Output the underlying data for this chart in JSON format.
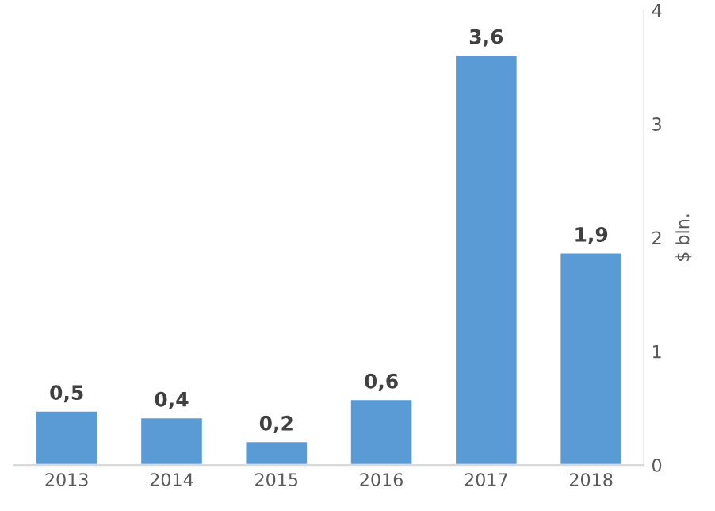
{
  "chart_data": {
    "type": "bar",
    "ylabel": "$ bln.",
    "categories": [
      "2013",
      "2014",
      "2015",
      "2016",
      "2017",
      "2018"
    ],
    "values": [
      0.48,
      0.42,
      0.21,
      0.58,
      3.61,
      1.87
    ],
    "value_labels": [
      "0,5",
      "0,4",
      "0,2",
      "0,6",
      "3,6",
      "1,9"
    ],
    "color": "#5b9bd5",
    "ylim": [
      0,
      4
    ],
    "yticks": [
      0,
      1,
      2,
      3,
      4
    ],
    "grid": false,
    "legend": false
  }
}
